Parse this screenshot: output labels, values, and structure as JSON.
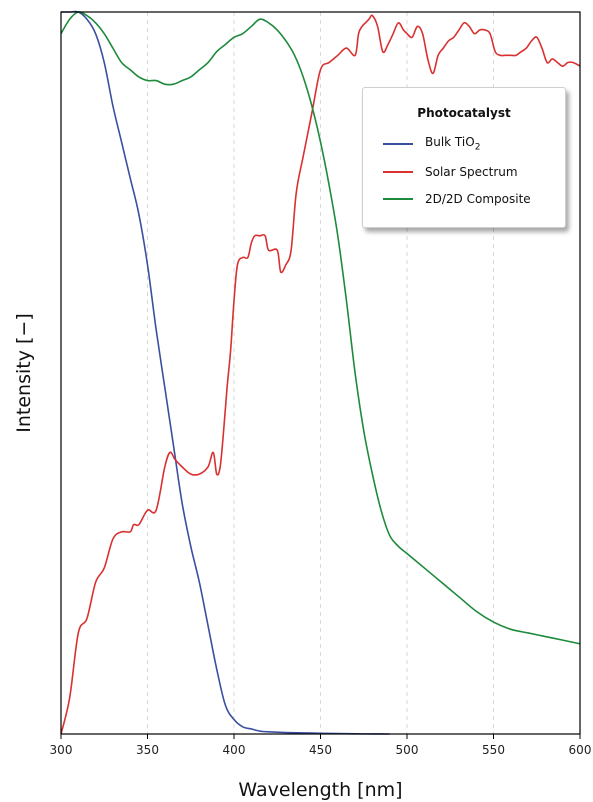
{
  "chart_data": {
    "type": "line",
    "title": "",
    "xlabel": "Wavelength [nm]",
    "ylabel": "Intensity [−]",
    "xlim": [
      300,
      600
    ],
    "ylim": [
      0,
      1
    ],
    "x_ticks": [
      "300",
      "350",
      "400",
      "450",
      "500",
      "550",
      "600"
    ],
    "y_ticks_shown": false,
    "grid": "vertical-dashed",
    "legend": {
      "title": "Photocatalyst",
      "placement": "top-right"
    },
    "series": [
      {
        "name": "Bulk TiO2",
        "label_main": "Bulk TiO",
        "label_sub": "2",
        "color": "#3a4fa0",
        "x": [
          300,
          305,
          310,
          315,
          320,
          325,
          330,
          335,
          340,
          345,
          350,
          355,
          360,
          365,
          370,
          375,
          380,
          385,
          390,
          395,
          400,
          405,
          410,
          415,
          420,
          430,
          440,
          450,
          460,
          470,
          480,
          490
        ],
        "y": [
          1.0,
          1.0,
          1.0,
          0.99,
          0.97,
          0.93,
          0.87,
          0.82,
          0.77,
          0.72,
          0.65,
          0.56,
          0.48,
          0.4,
          0.32,
          0.26,
          0.21,
          0.15,
          0.09,
          0.04,
          0.02,
          0.01,
          0.007,
          0.004,
          0.003,
          0.002,
          0.0015,
          0.001,
          0.0006,
          0.0003,
          0.0001,
          0.0
        ]
      },
      {
        "name": "Solar Spectrum",
        "color": "#d93030",
        "x": [
          300,
          305,
          310,
          315,
          320,
          325,
          330,
          335,
          340,
          342,
          345,
          350,
          355,
          360,
          363,
          366,
          370,
          375,
          380,
          385,
          388,
          390,
          392,
          394,
          396,
          398,
          400,
          402,
          405,
          408,
          410,
          412,
          415,
          418,
          420,
          425,
          427,
          430,
          433,
          436,
          440,
          445,
          450,
          455,
          460,
          465,
          470,
          472,
          474,
          476,
          478,
          480,
          483,
          486,
          489,
          492,
          495,
          498,
          500,
          503,
          506,
          509,
          512,
          515,
          518,
          521,
          524,
          527,
          530,
          533,
          536,
          539,
          542,
          545,
          548,
          551,
          554,
          557,
          560,
          563,
          566,
          569,
          572,
          575,
          578,
          581,
          584,
          587,
          590,
          593,
          596,
          600
        ],
        "y": [
          0.0,
          0.05,
          0.14,
          0.16,
          0.21,
          0.23,
          0.27,
          0.28,
          0.28,
          0.29,
          0.29,
          0.31,
          0.31,
          0.37,
          0.39,
          0.38,
          0.37,
          0.36,
          0.36,
          0.37,
          0.39,
          0.36,
          0.37,
          0.42,
          0.48,
          0.53,
          0.6,
          0.65,
          0.66,
          0.66,
          0.68,
          0.69,
          0.69,
          0.69,
          0.67,
          0.67,
          0.64,
          0.65,
          0.67,
          0.75,
          0.8,
          0.86,
          0.92,
          0.93,
          0.94,
          0.95,
          0.94,
          0.97,
          0.98,
          0.985,
          0.99,
          0.995,
          0.98,
          0.945,
          0.955,
          0.97,
          0.985,
          0.975,
          0.97,
          0.965,
          0.98,
          0.97,
          0.935,
          0.915,
          0.94,
          0.95,
          0.96,
          0.965,
          0.975,
          0.985,
          0.98,
          0.97,
          0.975,
          0.975,
          0.97,
          0.945,
          0.94,
          0.94,
          0.94,
          0.94,
          0.945,
          0.95,
          0.96,
          0.965,
          0.95,
          0.93,
          0.935,
          0.93,
          0.925,
          0.93,
          0.93,
          0.925
        ]
      },
      {
        "name": "2D/2D Composite",
        "color": "#1e8a3c",
        "x": [
          300,
          305,
          310,
          315,
          320,
          325,
          330,
          335,
          340,
          345,
          350,
          355,
          360,
          365,
          370,
          375,
          380,
          385,
          390,
          395,
          400,
          405,
          410,
          415,
          420,
          425,
          430,
          435,
          440,
          445,
          450,
          455,
          460,
          465,
          470,
          475,
          480,
          485,
          490,
          495,
          500,
          505,
          510,
          520,
          530,
          540,
          550,
          560,
          570,
          580,
          590,
          600
        ],
        "y": [
          0.97,
          0.99,
          1.0,
          0.995,
          0.985,
          0.97,
          0.95,
          0.93,
          0.92,
          0.91,
          0.905,
          0.905,
          0.9,
          0.9,
          0.905,
          0.91,
          0.92,
          0.93,
          0.945,
          0.955,
          0.965,
          0.97,
          0.98,
          0.99,
          0.985,
          0.975,
          0.96,
          0.94,
          0.91,
          0.87,
          0.82,
          0.76,
          0.69,
          0.6,
          0.5,
          0.42,
          0.36,
          0.31,
          0.275,
          0.26,
          0.25,
          0.24,
          0.23,
          0.21,
          0.19,
          0.17,
          0.155,
          0.145,
          0.14,
          0.135,
          0.13,
          0.125
        ]
      }
    ]
  }
}
